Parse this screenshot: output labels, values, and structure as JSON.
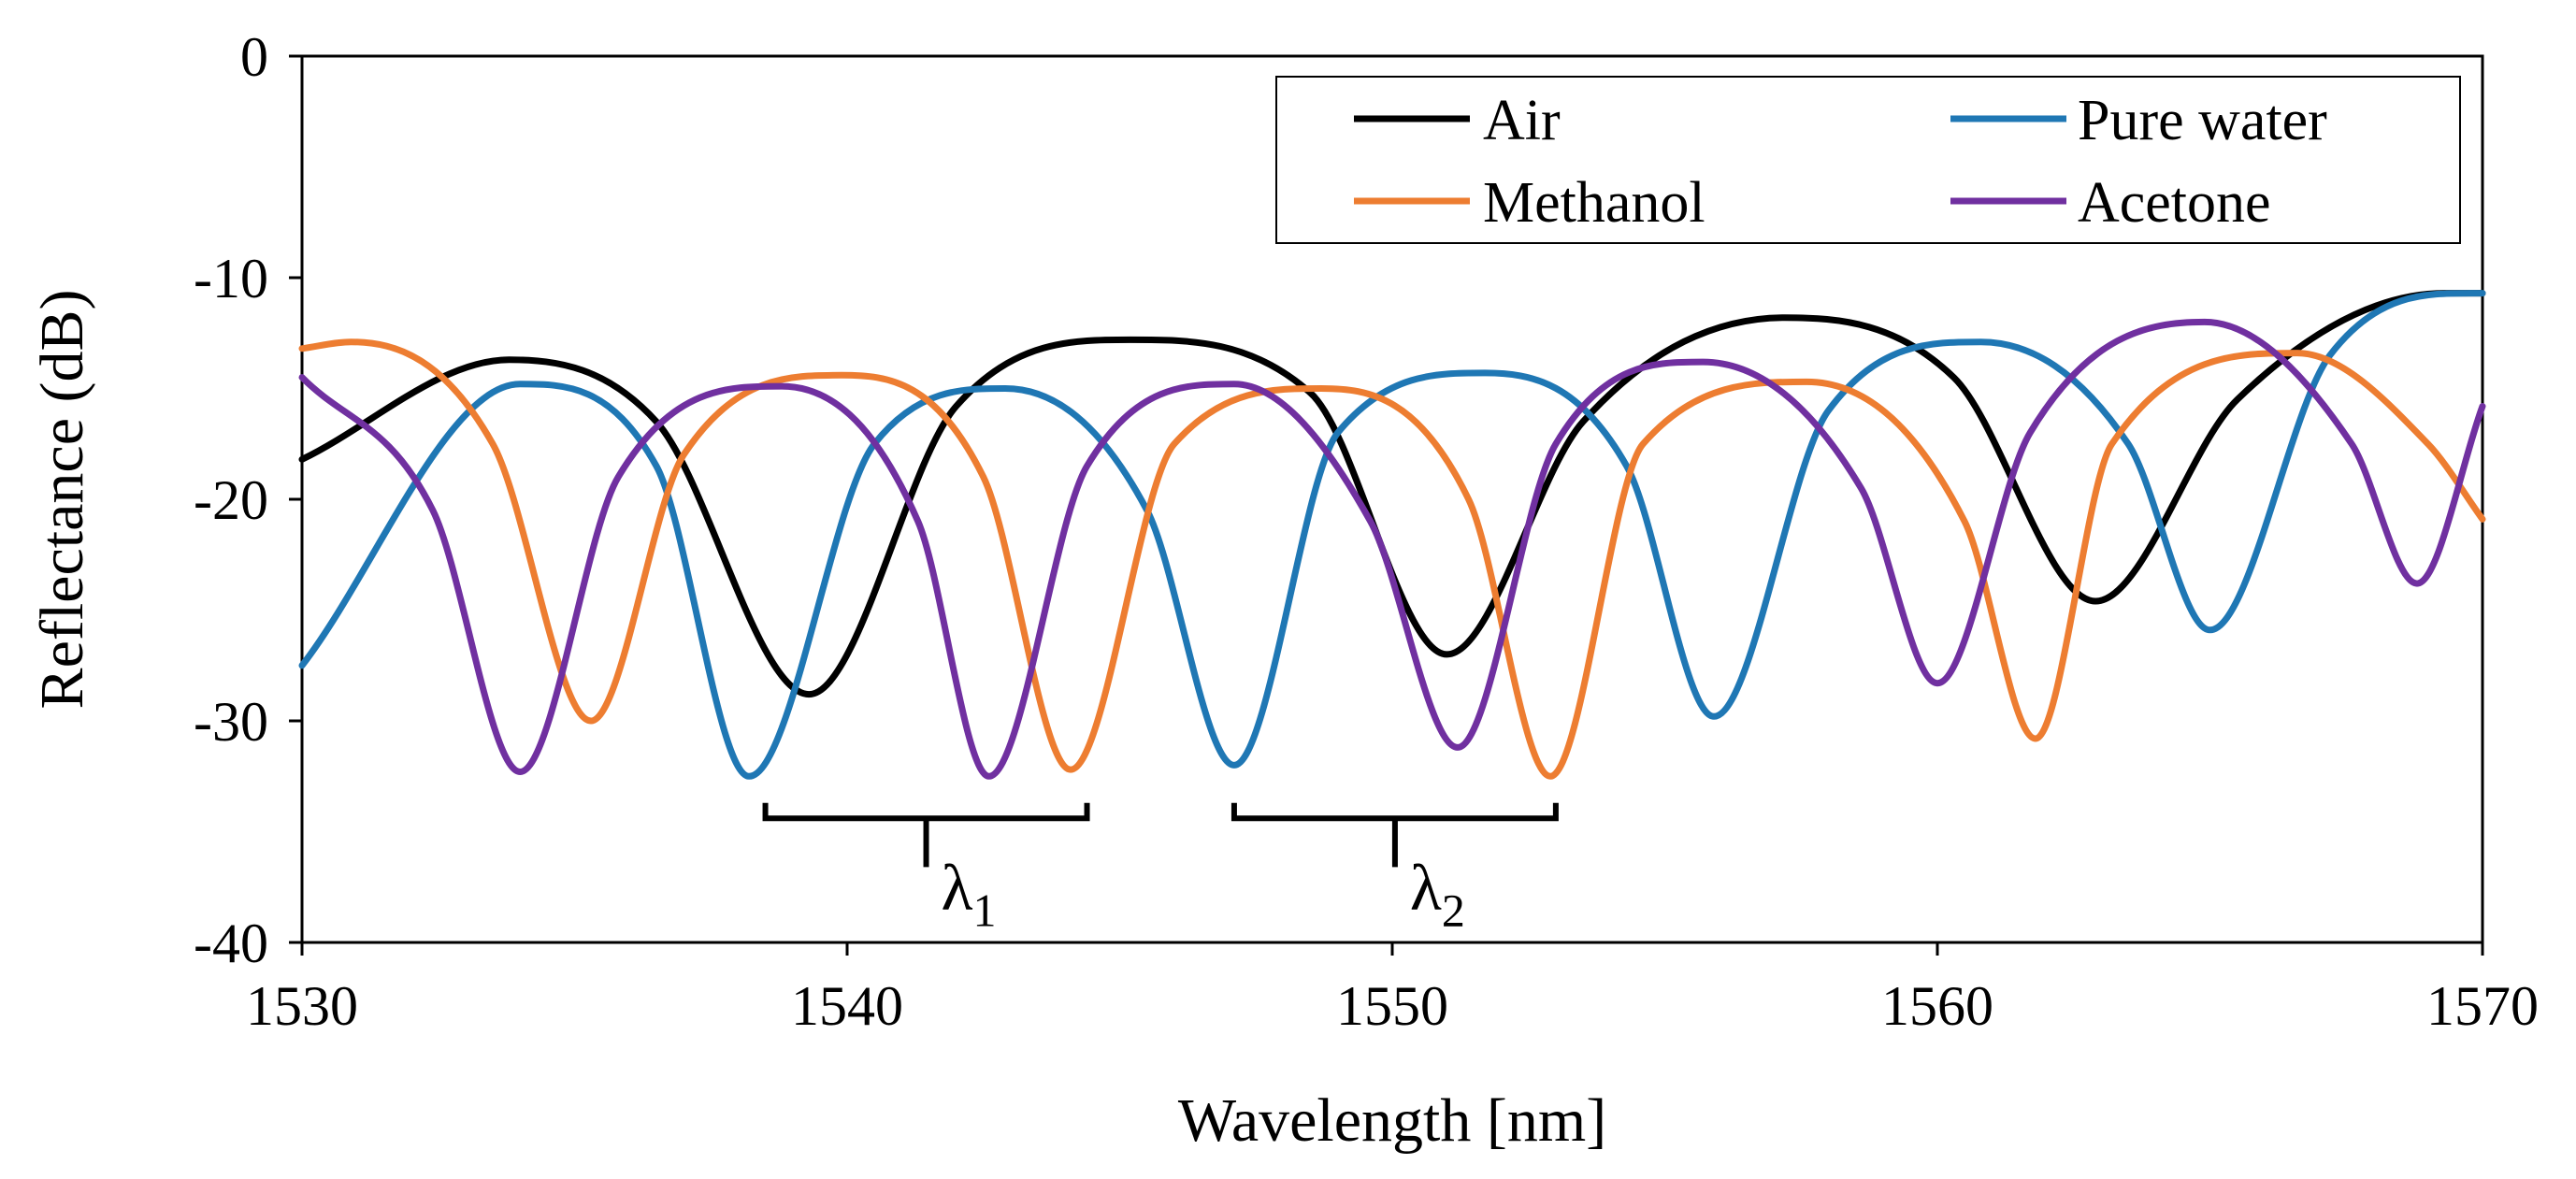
{
  "chart_data": {
    "type": "line",
    "xlabel": "Wavelength [nm]",
    "ylabel": "Reflectance (dB)",
    "xlim": [
      1530,
      1570
    ],
    "ylim": [
      -40,
      0
    ],
    "xticks": [
      1530,
      1540,
      1550,
      1560,
      1570
    ],
    "yticks": [
      0,
      -10,
      -20,
      -30,
      -40
    ],
    "legend_position": "top-right",
    "series": [
      {
        "name": "Air",
        "color": "#000000",
        "x": [
          1530,
          1533.8,
          1536.5,
          1539.3,
          1542,
          1545.2,
          1548.5,
          1551.0,
          1553.5,
          1557.2,
          1560.3,
          1562.9,
          1565.5,
          1569.3,
          1570
        ],
        "y": [
          -18.2,
          -13.7,
          -16.5,
          -28.8,
          -15.8,
          -12.8,
          -15.2,
          -27.0,
          -16.5,
          -11.8,
          -14.5,
          -24.6,
          -15.5,
          -10.7,
          -10.7
        ]
      },
      {
        "name": "Pure water",
        "color": "#1f77b4",
        "x": [
          1530,
          1534.0,
          1536.5,
          1538.2,
          1540.5,
          1542.9,
          1545.5,
          1547.1,
          1549.0,
          1551.7,
          1554.3,
          1555.9,
          1558.0,
          1560.8,
          1563.5,
          1565.0,
          1567.2,
          1569.8,
          1570
        ],
        "y": [
          -27.5,
          -14.8,
          -18.5,
          -32.5,
          -17.5,
          -15.0,
          -20.5,
          -32.0,
          -17.0,
          -14.3,
          -18.5,
          -29.8,
          -16.0,
          -12.9,
          -17.5,
          -25.9,
          -13.5,
          -10.7,
          -10.7
        ]
      },
      {
        "name": "Methanol",
        "color": "#ed7d31",
        "x": [
          1530,
          1530.9,
          1533.5,
          1535.3,
          1537.0,
          1539.9,
          1542.5,
          1544.1,
          1546.0,
          1548.7,
          1551.4,
          1552.9,
          1554.6,
          1557.6,
          1560.5,
          1561.8,
          1563.2,
          1566.6,
          1569.0,
          1570
        ],
        "y": [
          -13.2,
          -12.9,
          -17.5,
          -30.0,
          -18.0,
          -14.4,
          -19.0,
          -32.2,
          -17.5,
          -15.0,
          -20.0,
          -32.5,
          -17.5,
          -14.7,
          -21.0,
          -30.8,
          -17.5,
          -13.4,
          -17.5,
          -20.9
        ]
      },
      {
        "name": "Acetone",
        "color": "#7030a0",
        "x": [
          1530,
          1532.4,
          1534.0,
          1535.8,
          1538.8,
          1541.3,
          1542.6,
          1544.4,
          1547.1,
          1549.6,
          1551.2,
          1553.0,
          1555.7,
          1558.6,
          1560.0,
          1561.7,
          1564.9,
          1567.6,
          1568.8,
          1570
        ],
        "y": [
          -14.5,
          -20.5,
          -32.3,
          -19.0,
          -14.9,
          -21.0,
          -32.5,
          -18.5,
          -14.8,
          -21.0,
          -31.2,
          -17.5,
          -13.8,
          -19.5,
          -28.3,
          -17.0,
          -12.0,
          -17.5,
          -23.8,
          -15.8
        ]
      }
    ],
    "annotations": [
      {
        "symbol": "λ",
        "subscript": "1",
        "from": 1538.5,
        "to": 1544.4
      },
      {
        "symbol": "λ",
        "subscript": "2",
        "from": 1547.1,
        "to": 1553.0
      }
    ]
  }
}
